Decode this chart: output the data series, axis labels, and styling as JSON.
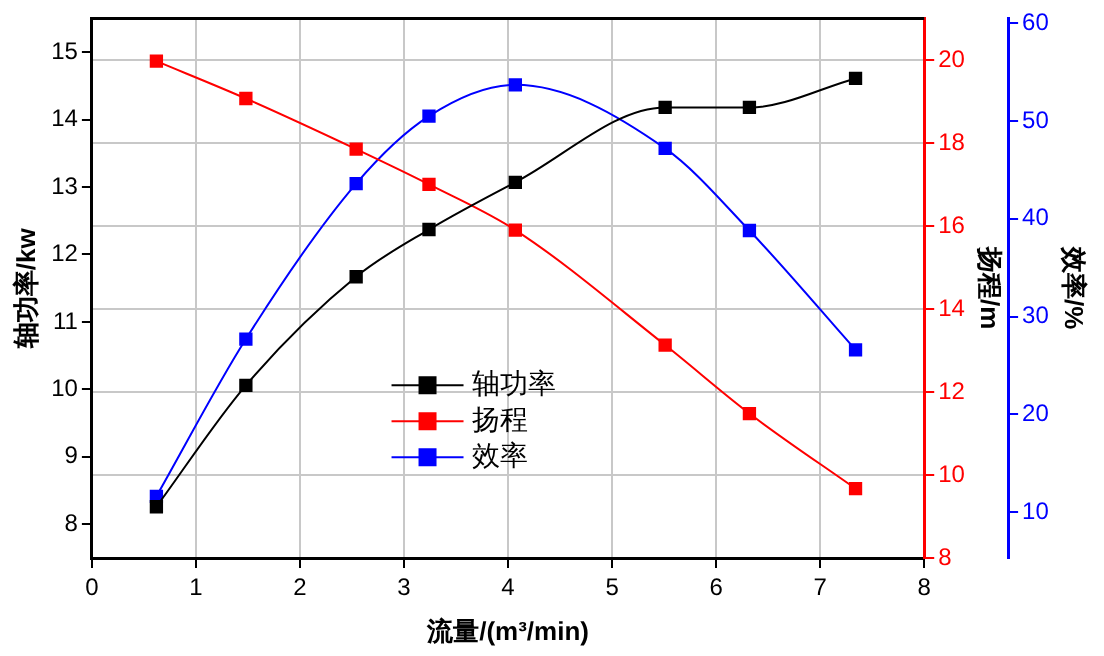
{
  "chart_data": {
    "type": "line",
    "xlabel": "流量/(m³/min)",
    "ylabel": "轴功率/kw",
    "y2label": "扬程/m",
    "y3label": "效率/%",
    "xlim": [
      0,
      8
    ],
    "xticks": [
      0,
      1,
      2,
      3,
      4,
      5,
      6,
      7,
      8
    ],
    "ylim": [
      7.5,
      15.5
    ],
    "yticks": [
      8,
      9,
      10,
      11,
      12,
      13,
      14,
      15
    ],
    "y2lim": [
      8,
      21
    ],
    "y2ticks": [
      8,
      10,
      12,
      14,
      16,
      18,
      20
    ],
    "y3lim": [
      5.3,
      60.5
    ],
    "y3ticks": [
      10,
      20,
      30,
      40,
      50,
      60
    ],
    "grid": true,
    "legend": "center",
    "marker": "square",
    "line_style": "solid",
    "series": [
      {
        "name": "轴功率",
        "color": "#000000",
        "x": [
          0.62,
          1.48,
          2.54,
          3.24,
          4.07,
          5.51,
          6.32,
          7.34
        ],
        "values": [
          8.26,
          10.06,
          11.67,
          12.37,
          13.07,
          14.18,
          14.18,
          14.61
        ]
      },
      {
        "name": "扬程",
        "color": "#ff0000",
        "axis": "y2",
        "x": [
          0.62,
          1.48,
          2.54,
          3.24,
          4.07,
          5.51,
          6.32,
          7.34
        ],
        "values": [
          19.97,
          19.07,
          17.85,
          17.0,
          15.9,
          13.13,
          11.48,
          9.67
        ]
      },
      {
        "name": "效率",
        "color": "#0000ff",
        "axis": "y3",
        "x": [
          0.62,
          1.48,
          2.54,
          3.24,
          4.07,
          5.51,
          6.32,
          7.34
        ],
        "values": [
          11.6,
          27.7,
          43.6,
          50.5,
          53.7,
          47.2,
          38.8,
          26.6
        ]
      }
    ]
  }
}
